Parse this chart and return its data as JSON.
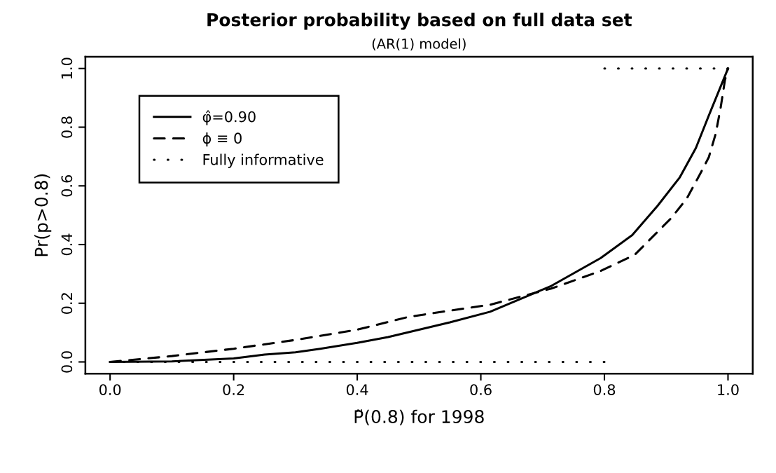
{
  "chart_data": {
    "type": "line",
    "title": "Posterior probability based on full data set",
    "subtitle": "(AR(1) model)",
    "xlabel": "P̃(0.8) for 1998",
    "ylabel": "Pr(p>0.8)",
    "xlim": [
      -0.04,
      1.04
    ],
    "ylim": [
      -0.04,
      1.04
    ],
    "xticks": [
      {
        "value": 0,
        "label": "0.0"
      },
      0.2,
      0.4,
      0.6,
      0.8,
      {
        "value": 1,
        "label": "1.0"
      }
    ],
    "yticks": [
      {
        "value": 0,
        "label": "0.0"
      },
      0.2,
      0.4,
      0.6,
      0.8,
      {
        "value": 1,
        "label": "1.0"
      }
    ],
    "grid": false,
    "legend": "top left",
    "series": [
      {
        "name": "φ̂=0.90",
        "color": "#000000",
        "line_style": "solid",
        "x": [
          0,
          0.1,
          0.2,
          0.25,
          0.3,
          0.34,
          0.4,
          0.45,
          0.5,
          0.55,
          0.615,
          0.714,
          0.794,
          0.845,
          0.886,
          0.922,
          0.948,
          0.969,
          1.0
        ],
        "values": [
          0,
          0.002,
          0.012,
          0.025,
          0.033,
          0.045,
          0.065,
          0.085,
          0.11,
          0.135,
          0.171,
          0.259,
          0.354,
          0.432,
          0.532,
          0.629,
          0.729,
          0.84,
          1.0
        ]
      },
      {
        "name": "ϕ ≡ 0",
        "color": "#000000",
        "line_style": "dashed",
        "x": [
          0,
          0.1,
          0.2,
          0.3,
          0.4,
          0.484,
          0.615,
          0.714,
          0.794,
          0.849,
          0.908,
          0.933,
          0.955,
          0.969,
          0.98,
          0.988,
          0.995,
          1.0
        ],
        "values": [
          0,
          0.02,
          0.045,
          0.075,
          0.11,
          0.154,
          0.195,
          0.25,
          0.31,
          0.365,
          0.49,
          0.556,
          0.641,
          0.698,
          0.777,
          0.865,
          0.96,
          1.0
        ]
      },
      {
        "name": "Fully informative",
        "color": "#000000",
        "line_style": "dotted",
        "x": [
          0,
          0.8
        ],
        "values": [
          0,
          0
        ]
      },
      {
        "color": "#000000",
        "line_style": "dotted",
        "x": [
          0.8,
          1.0
        ],
        "values": [
          1,
          1
        ]
      }
    ]
  }
}
